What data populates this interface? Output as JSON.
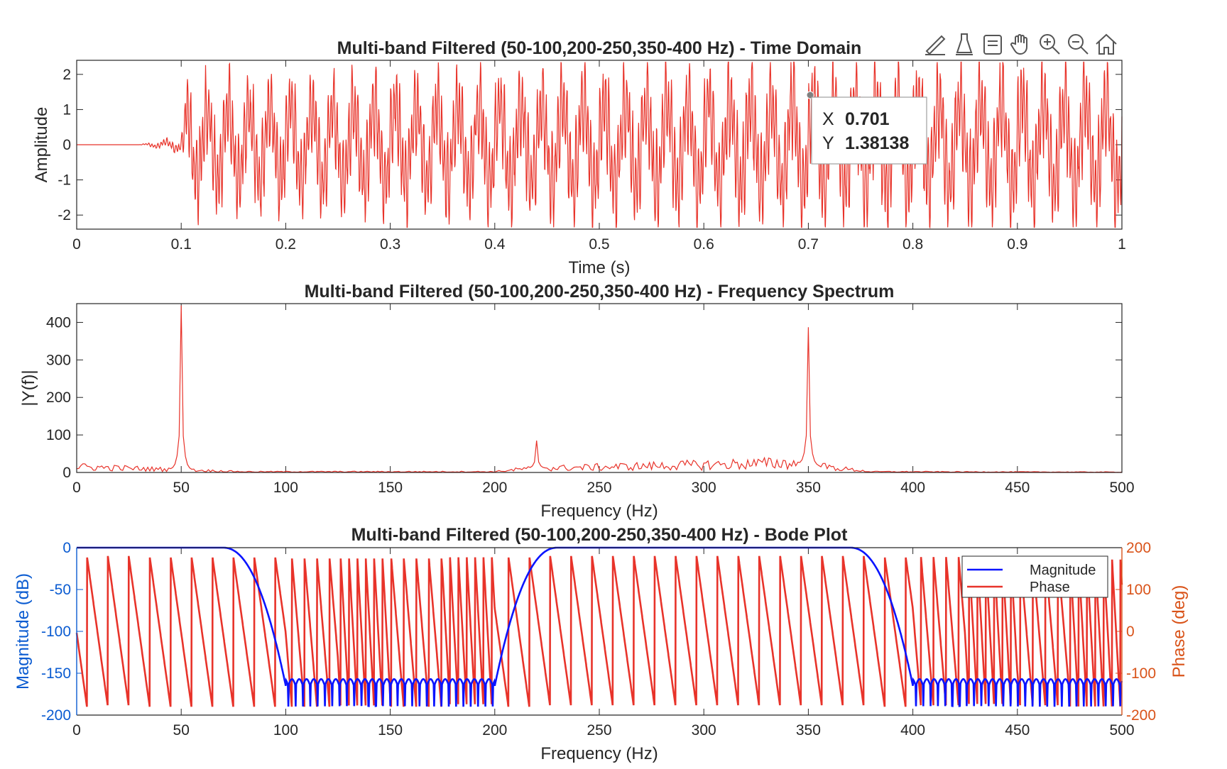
{
  "toolbar": {
    "icons": [
      "brush-edit-icon",
      "data-tips-icon",
      "restore-view-icon",
      "pan-hand-icon",
      "zoom-in-icon",
      "zoom-out-icon",
      "home-icon"
    ]
  },
  "datatip": {
    "x_label": "X",
    "x_value": "0.701",
    "y_label": "Y",
    "y_value": "1.38138"
  },
  "legend": {
    "magnitude": "Magnitude",
    "phase": "Phase"
  },
  "colors": {
    "signal": "#e8332a",
    "magnitude": "#0a14ff",
    "phase": "#e8332a",
    "left_axis": "#0a5bd1",
    "right_axis": "#d95319"
  },
  "chart_data": [
    {
      "type": "line",
      "title": "Multi-band Filtered (50-100,200-250,350-400 Hz) - Time Domain",
      "xlabel": "Time (s)",
      "ylabel": "Amplitude",
      "xlim": [
        0,
        1
      ],
      "ylim": [
        -2.4,
        2.4
      ],
      "xticks": [
        "0",
        "0.1",
        "0.2",
        "0.3",
        "0.4",
        "0.5",
        "0.6",
        "0.7",
        "0.8",
        "0.9",
        "1"
      ],
      "yticks": [
        "-2",
        "-1",
        "0",
        "1",
        "2"
      ],
      "series": [
        {
          "components_hz": [
            50,
            220,
            350
          ],
          "envelope": [
            [
              0,
              0
            ],
            [
              0.06,
              0
            ],
            [
              0.1,
              0.25
            ],
            [
              0.105,
              1.9
            ],
            [
              0.65,
              2.3
            ],
            [
              1,
              2.3
            ]
          ]
        }
      ],
      "datatip": {
        "x": 0.701,
        "y": 1.38138
      }
    },
    {
      "type": "line",
      "title": "Multi-band Filtered (50-100,200-250,350-400 Hz) - Frequency Spectrum",
      "xlabel": "Frequency (Hz)",
      "ylabel": "|Y(f)|",
      "xlim": [
        0,
        500
      ],
      "ylim": [
        0,
        450
      ],
      "xticks": [
        "0",
        "50",
        "100",
        "150",
        "200",
        "250",
        "300",
        "350",
        "400",
        "450",
        "500"
      ],
      "yticks": [
        "0",
        "100",
        "200",
        "300",
        "400"
      ],
      "peaks": [
        [
          50,
          445
        ],
        [
          220,
          85
        ],
        [
          350,
          387
        ]
      ],
      "noise_floor": [
        [
          0,
          15
        ],
        [
          80,
          2
        ],
        [
          200,
          2
        ],
        [
          215,
          10
        ],
        [
          340,
          25
        ],
        [
          380,
          2
        ],
        [
          500,
          1
        ]
      ]
    },
    {
      "type": "line",
      "title": "Multi-band Filtered (50-100,200-250,350-400 Hz) - Bode Plot",
      "xlabel": "Frequency (Hz)",
      "ylabel_left": "Magnitude (dB)",
      "ylabel_right": "Phase (deg)",
      "xlim": [
        0,
        500
      ],
      "ylim_left": [
        -200,
        0
      ],
      "ylim_right": [
        -200,
        200
      ],
      "xticks": [
        "0",
        "50",
        "100",
        "150",
        "200",
        "250",
        "300",
        "350",
        "400",
        "450",
        "500"
      ],
      "yticks_left": [
        "-200",
        "-150",
        "-100",
        "-50",
        "0"
      ],
      "yticks_right": [
        "-200",
        "-100",
        "0",
        "100",
        "200"
      ],
      "legend_position": "top-right",
      "series": [
        {
          "name": "Magnitude",
          "axis": "left",
          "passbands_hz": [
            [
              0,
              100
            ],
            [
              200,
              400
            ]
          ],
          "stopband_db": -165
        },
        {
          "name": "Phase",
          "axis": "right",
          "wrap_deg": [
            -180,
            180
          ]
        }
      ]
    }
  ]
}
